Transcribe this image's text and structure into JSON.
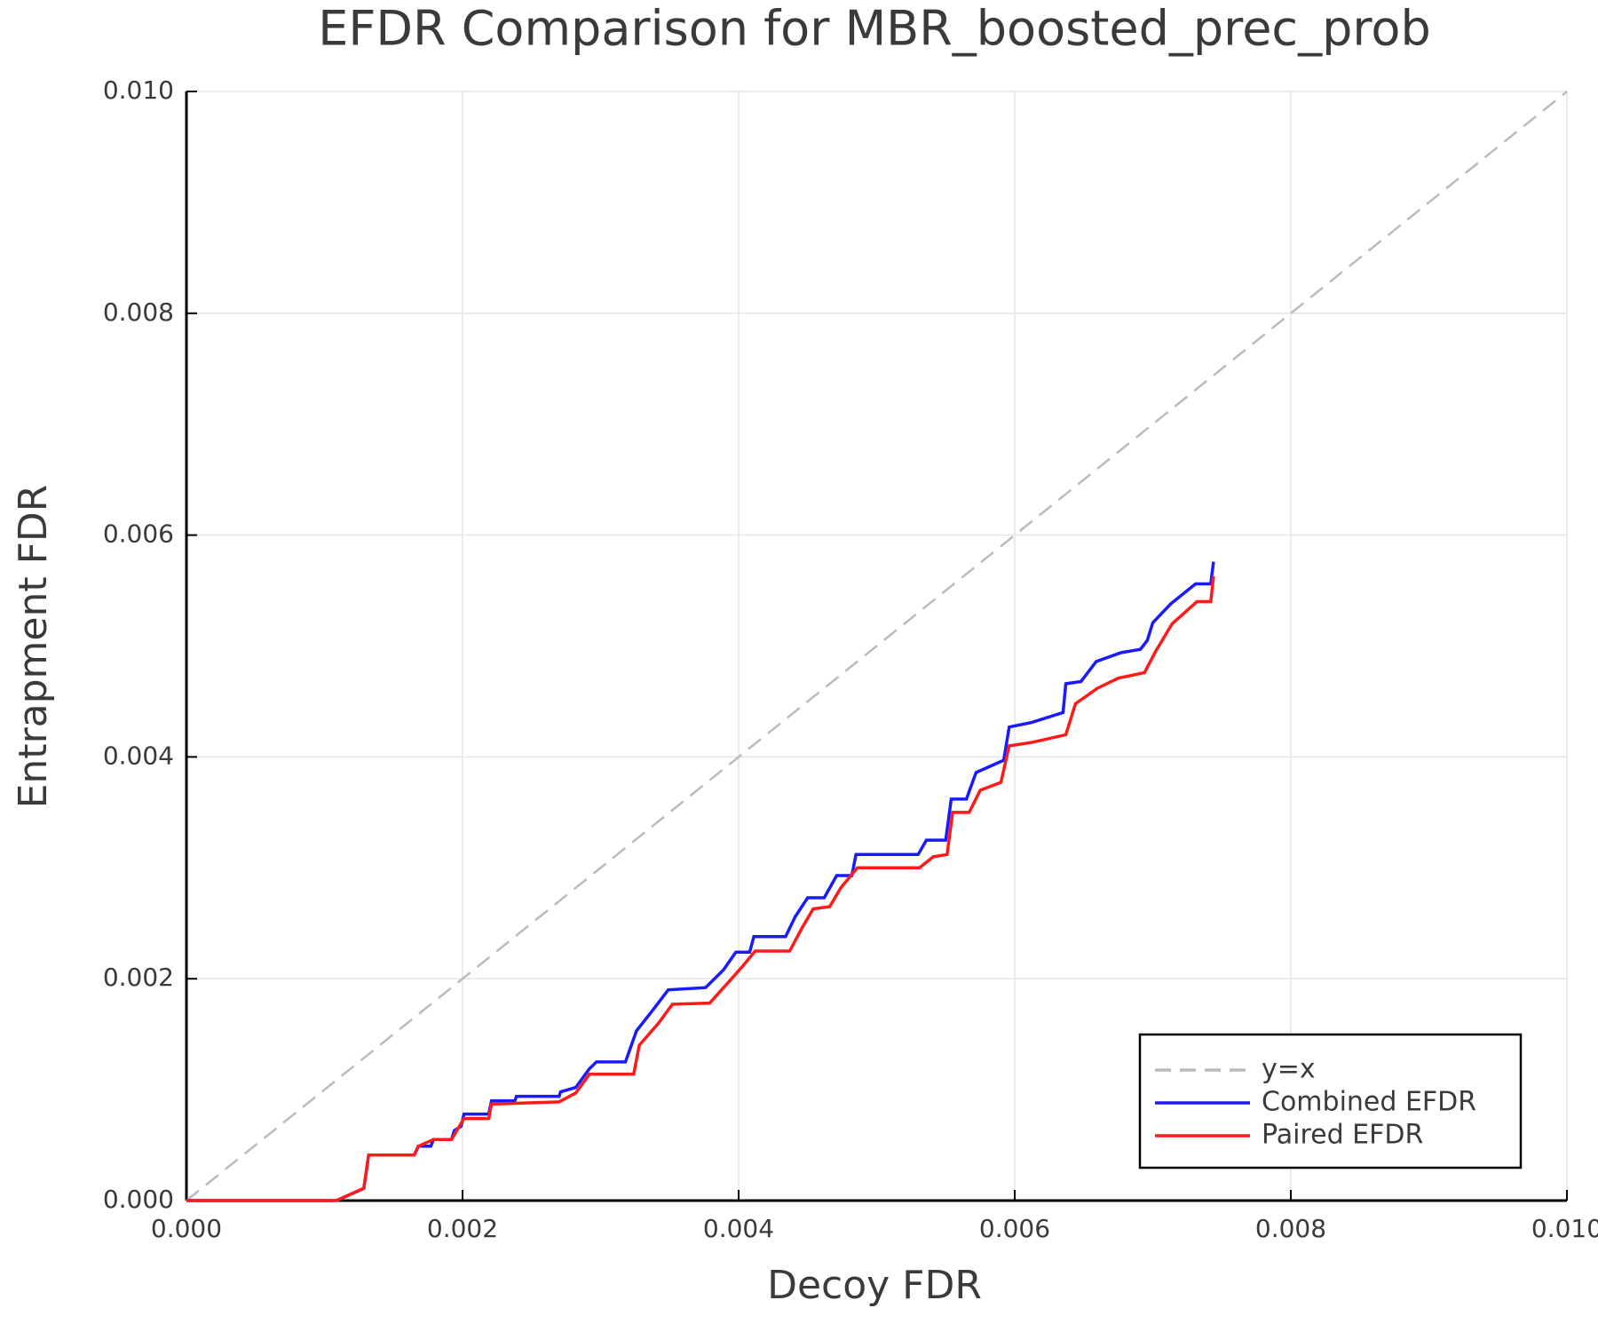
{
  "chart_data": {
    "type": "line",
    "title": "EFDR Comparison for MBR_boosted_prec_prob",
    "xlabel": "Decoy FDR",
    "ylabel": "Entrapment FDR",
    "xlim": [
      0,
      0.01
    ],
    "ylim": [
      0,
      0.01
    ],
    "xticks": [
      {
        "value": 0,
        "label": "0.000"
      },
      {
        "value": 0.002,
        "label": "0.002"
      },
      {
        "value": 0.004,
        "label": "0.004"
      },
      {
        "value": 0.006,
        "label": "0.006"
      },
      {
        "value": 0.008,
        "label": "0.008"
      },
      {
        "value": 0.01,
        "label": "0.010"
      }
    ],
    "yticks": [
      {
        "value": 0,
        "label": "0.000"
      },
      {
        "value": 0.002,
        "label": "0.002"
      },
      {
        "value": 0.004,
        "label": "0.004"
      },
      {
        "value": 0.006,
        "label": "0.006"
      },
      {
        "value": 0.008,
        "label": "0.008"
      },
      {
        "value": 0.01,
        "label": "0.010"
      }
    ],
    "grid": true,
    "legend": "lower right",
    "series": [
      {
        "name": "y=x",
        "color": "#bbbbbb",
        "line_style": "dashed",
        "x": [
          0,
          0.01
        ],
        "values": [
          0,
          0.01
        ]
      },
      {
        "name": "Combined EFDR",
        "color": "#1a1aff",
        "line_style": "solid",
        "x": [
          0,
          0.001086,
          0.001285,
          0.00132,
          0.00165,
          0.00168,
          0.00177,
          0.00179,
          0.00192,
          0.00194,
          0.00199,
          0.00201,
          0.00219,
          0.00221,
          0.00238,
          0.00239,
          0.0027,
          0.00271,
          0.00282,
          0.00292,
          0.00297,
          0.00318,
          0.00326,
          0.00338,
          0.00349,
          0.00376,
          0.00389,
          0.00398,
          0.00408,
          0.00411,
          0.00434,
          0.00441,
          0.0045,
          0.00462,
          0.00471,
          0.00482,
          0.00485,
          0.0053,
          0.00536,
          0.0055,
          0.00554,
          0.00565,
          0.00572,
          0.00583,
          0.00592,
          0.00596,
          0.00612,
          0.00635,
          0.00637,
          0.00648,
          0.00659,
          0.00677,
          0.00691,
          0.00696,
          0.007,
          0.00713,
          0.00731,
          0.00742,
          0.00744
        ],
        "values": [
          0,
          0,
          0.00011,
          0.00041,
          0.00041,
          0.00049,
          0.00049,
          0.00055,
          0.00055,
          0.00063,
          0.00067,
          0.00078,
          0.00078,
          0.0009,
          0.0009,
          0.00094,
          0.00094,
          0.00098,
          0.00102,
          0.00119,
          0.00125,
          0.00125,
          0.00153,
          0.00172,
          0.0019,
          0.00192,
          0.00208,
          0.00224,
          0.00224,
          0.00238,
          0.00238,
          0.00256,
          0.00273,
          0.00273,
          0.00293,
          0.00293,
          0.00312,
          0.00312,
          0.00325,
          0.00325,
          0.00362,
          0.00362,
          0.00386,
          0.00392,
          0.00397,
          0.00427,
          0.00431,
          0.0044,
          0.00466,
          0.00468,
          0.00486,
          0.00494,
          0.00497,
          0.00505,
          0.00521,
          0.00538,
          0.00556,
          0.00556,
          0.00576
        ]
      },
      {
        "name": "Paired EFDR",
        "color": "#ff1a1a",
        "line_style": "solid",
        "x": [
          0,
          0.001086,
          0.001285,
          0.00132,
          0.00165,
          0.00168,
          0.00179,
          0.00192,
          0.00201,
          0.00219,
          0.00221,
          0.0027,
          0.00282,
          0.00292,
          0.00324,
          0.00328,
          0.00342,
          0.00352,
          0.00379,
          0.00392,
          0.00402,
          0.00412,
          0.00437,
          0.00446,
          0.00454,
          0.00466,
          0.00474,
          0.00486,
          0.00531,
          0.00541,
          0.00551,
          0.00555,
          0.00567,
          0.00575,
          0.0059,
          0.00596,
          0.00612,
          0.00637,
          0.00644,
          0.0066,
          0.00675,
          0.00694,
          0.00702,
          0.00714,
          0.00732,
          0.00742,
          0.00744
        ],
        "values": [
          0,
          0,
          0.00011,
          0.00041,
          0.00041,
          0.00049,
          0.00055,
          0.00055,
          0.00074,
          0.00074,
          0.00087,
          0.00089,
          0.00097,
          0.00114,
          0.00114,
          0.0014,
          0.0016,
          0.00177,
          0.00178,
          0.00196,
          0.0021,
          0.00225,
          0.00225,
          0.00246,
          0.00263,
          0.00265,
          0.00282,
          0.003,
          0.003,
          0.0031,
          0.00312,
          0.0035,
          0.0035,
          0.0037,
          0.00377,
          0.0041,
          0.00413,
          0.0042,
          0.00448,
          0.00462,
          0.00471,
          0.00476,
          0.00495,
          0.0052,
          0.0054,
          0.0054,
          0.00563
        ]
      }
    ]
  }
}
